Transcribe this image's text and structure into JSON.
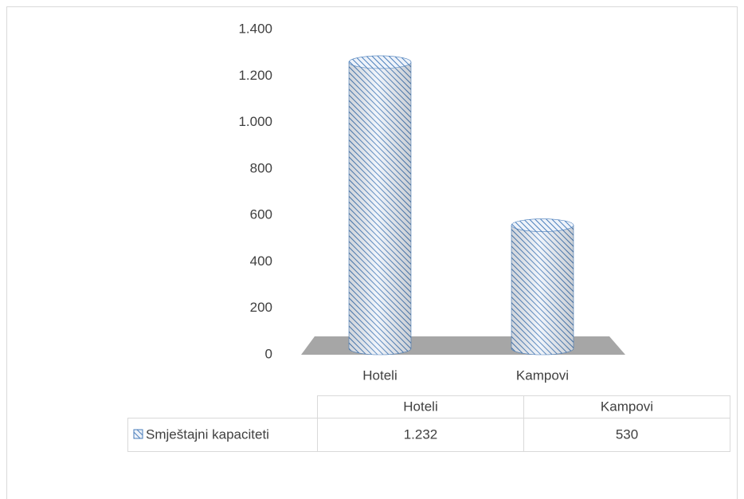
{
  "chart_data": {
    "type": "bar",
    "categories": [
      "Hoteli",
      "Kampovi"
    ],
    "series": [
      {
        "name": "Smještajni kapaciteti",
        "color": "#4a7ebb",
        "values": [
          1232,
          530
        ],
        "value_labels": [
          "1.232",
          "530"
        ]
      }
    ],
    "ylim": [
      0,
      1400
    ],
    "yticks": [
      0,
      200,
      400,
      600,
      800,
      {
        "value": 1000,
        "label": "1.000"
      },
      {
        "value": 1200,
        "label": "1.200"
      },
      {
        "value": 1400,
        "label": "1.400"
      }
    ],
    "grid": false,
    "data_table": true
  }
}
